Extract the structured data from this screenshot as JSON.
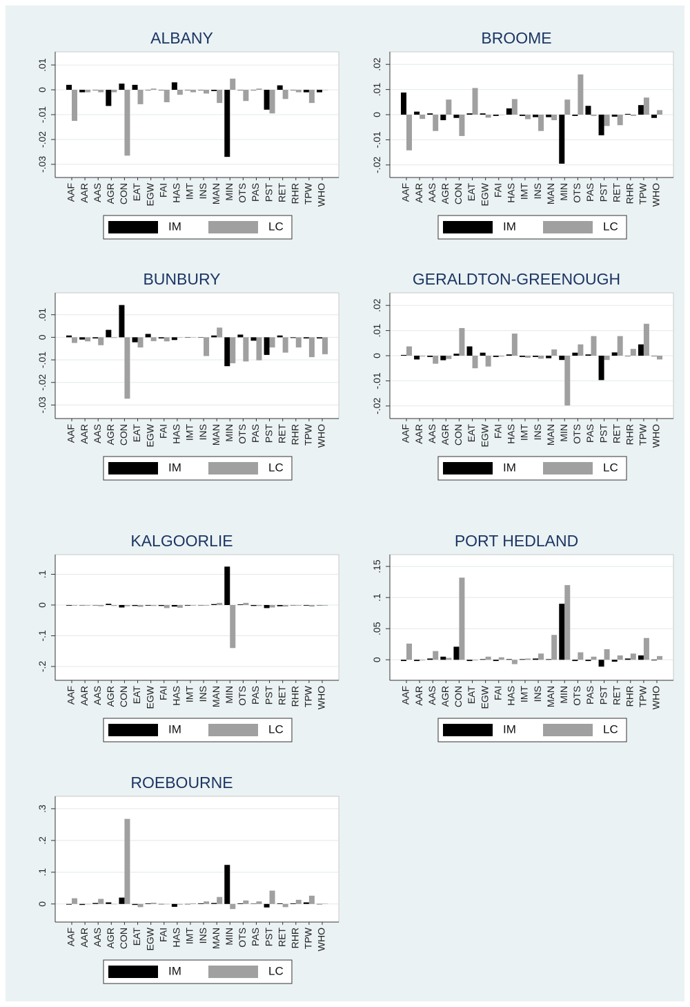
{
  "chart_data": [
    {
      "type": "bar",
      "title": "ALBANY",
      "categories": [
        "AAF",
        "AAR",
        "AAS",
        "AGR",
        "CON",
        "EAT",
        "EGW",
        "FAI",
        "HAS",
        "IMT",
        "INS",
        "MAN",
        "MIN",
        "OTS",
        "PAS",
        "PST",
        "RET",
        "RHR",
        "TPW",
        "WHO"
      ],
      "series": [
        {
          "name": "IM",
          "color": "#000000",
          "values": [
            0.002,
            -0.001,
            0,
            -0.0065,
            0.0025,
            0.002,
            0,
            0,
            0.003,
            0,
            0,
            -0.0005,
            -0.027,
            0,
            0,
            -0.008,
            0.0018,
            0,
            -0.001,
            -0.001
          ]
        },
        {
          "name": "LC",
          "color": "#a0a0a0",
          "values": [
            -0.0125,
            -0.001,
            -0.001,
            -0.001,
            -0.0265,
            -0.0058,
            0.0005,
            -0.005,
            -0.002,
            -0.001,
            -0.0015,
            -0.0053,
            0.0045,
            -0.0045,
            0.0005,
            -0.0095,
            -0.0037,
            -0.001,
            -0.0053,
            0
          ]
        }
      ],
      "ylim": [
        -0.0353,
        0.0153
      ],
      "yticks": [
        {
          "value": -0.03,
          "label": "-.03"
        },
        {
          "value": -0.02,
          "label": "-.02"
        },
        {
          "value": -0.01,
          "label": "-.01"
        },
        0,
        {
          "value": 0.01,
          "label": ".01"
        }
      ],
      "grid": true
    },
    {
      "type": "bar",
      "title": "BROOME",
      "categories": [
        "AAF",
        "AAR",
        "AAS",
        "AGR",
        "CON",
        "EAT",
        "EGW",
        "FAI",
        "HAS",
        "IMT",
        "INS",
        "MAN",
        "MIN",
        "OTS",
        "PAS",
        "PST",
        "RET",
        "RHR",
        "TPW",
        "WHO"
      ],
      "series": [
        {
          "name": "IM",
          "color": "#000000",
          "values": [
            0.0088,
            0.0012,
            0.0005,
            -0.0022,
            -0.0013,
            0.0005,
            0.0005,
            -0.0005,
            0.0025,
            -0.0005,
            -0.001,
            -0.001,
            -0.0195,
            -0.0005,
            0.0035,
            -0.0082,
            -0.0008,
            0.0003,
            0.0038,
            -0.0013
          ]
        },
        {
          "name": "LC",
          "color": "#a0a0a0",
          "values": [
            -0.0142,
            -0.0017,
            -0.0065,
            0.006,
            -0.0085,
            0.0106,
            -0.0012,
            0,
            0.0062,
            -0.0018,
            -0.0065,
            -0.0022,
            0.006,
            0.016,
            -0.0005,
            -0.0045,
            -0.0042,
            -0.0005,
            0.0068,
            0.0018
          ]
        }
      ],
      "ylim": [
        -0.025,
        0.025
      ],
      "yticks": [
        {
          "value": -0.02,
          "label": "-.02"
        },
        {
          "value": -0.01,
          "label": "-.01"
        },
        0,
        {
          "value": 0.01,
          "label": ".01"
        },
        {
          "value": 0.02,
          "label": ".02"
        }
      ],
      "grid": true
    },
    {
      "type": "bar",
      "title": "BUNBURY",
      "categories": [
        "AAF",
        "AAR",
        "AAS",
        "AGR",
        "CON",
        "EAT",
        "EGW",
        "FAI",
        "HAS",
        "IMT",
        "INS",
        "MAN",
        "MIN",
        "OTS",
        "PAS",
        "PST",
        "RET",
        "RHR",
        "TPW",
        "WHO"
      ],
      "series": [
        {
          "name": "IM",
          "color": "#000000",
          "values": [
            0.0008,
            -0.001,
            -0.0005,
            0.0033,
            0.0143,
            -0.0022,
            0.0015,
            -0.0005,
            -0.0012,
            0,
            0,
            0.0008,
            -0.0128,
            0.0012,
            -0.0015,
            -0.0078,
            0.0008,
            -0.0003,
            -0.0005,
            -0.0005
          ]
        },
        {
          "name": "LC",
          "color": "#a0a0a0",
          "values": [
            -0.0025,
            -0.0018,
            -0.0035,
            -0.0003,
            -0.0272,
            -0.0045,
            -0.0017,
            -0.0018,
            0,
            0,
            -0.0083,
            0.0043,
            -0.0115,
            -0.0107,
            -0.0102,
            -0.0045,
            -0.0068,
            -0.0045,
            -0.0088,
            -0.0075
          ]
        }
      ],
      "ylim": [
        -0.036,
        0.0197
      ],
      "yticks": [
        {
          "value": -0.03,
          "label": "-.03"
        },
        {
          "value": -0.02,
          "label": "-.02"
        },
        {
          "value": -0.01,
          "label": "-.01"
        },
        0,
        {
          "value": 0.01,
          "label": ".01"
        }
      ],
      "grid": true
    },
    {
      "type": "bar",
      "title": "GERALDTON-GREENOUGH",
      "categories": [
        "AAF",
        "AAR",
        "AAS",
        "AGR",
        "CON",
        "EAT",
        "EGW",
        "FAI",
        "HAS",
        "IMT",
        "INS",
        "MAN",
        "MIN",
        "OTS",
        "PAS",
        "PST",
        "RET",
        "RHR",
        "TPW",
        "WHO"
      ],
      "series": [
        {
          "name": "IM",
          "color": "#000000",
          "values": [
            0.0003,
            -0.0015,
            -0.0005,
            -0.0018,
            0.0008,
            0.0037,
            0.0012,
            -0.0005,
            0.0005,
            -0.0005,
            -0.0005,
            -0.001,
            -0.0017,
            0.0012,
            0.0005,
            -0.0097,
            0.0013,
            0,
            0.0045,
            0
          ]
        },
        {
          "name": "LC",
          "color": "#a0a0a0",
          "values": [
            0.0037,
            -0.0003,
            -0.0032,
            -0.0013,
            0.011,
            -0.005,
            -0.0043,
            -0.0003,
            0.0088,
            -0.0008,
            -0.0012,
            0.0025,
            -0.0198,
            0.0045,
            0.0078,
            -0.0017,
            0.0078,
            0.0027,
            0.0127,
            -0.0015
          ]
        }
      ],
      "ylim": [
        -0.025,
        0.025
      ],
      "yticks": [
        {
          "value": -0.02,
          "label": "-.02"
        },
        {
          "value": -0.01,
          "label": "-.01"
        },
        0,
        {
          "value": 0.01,
          "label": ".01"
        },
        {
          "value": 0.02,
          "label": ".02"
        }
      ],
      "grid": true
    },
    {
      "type": "bar",
      "title": "KALGOORLIE",
      "categories": [
        "AAF",
        "AAR",
        "AAS",
        "AGR",
        "CON",
        "EAT",
        "EGW",
        "FAI",
        "HAS",
        "IMT",
        "INS",
        "MAN",
        "MIN",
        "OTS",
        "PAS",
        "PST",
        "RET",
        "RHR",
        "TPW",
        "WHO"
      ],
      "series": [
        {
          "name": "IM",
          "color": "#000000",
          "values": [
            -0.002,
            -0.001,
            -0.001,
            0.004,
            -0.008,
            -0.003,
            -0.002,
            -0.003,
            -0.005,
            -0.002,
            0,
            0.003,
            0.125,
            0.002,
            -0.003,
            -0.01,
            -0.004,
            -0.001,
            -0.002,
            -0.001
          ]
        },
        {
          "name": "LC",
          "color": "#a0a0a0",
          "values": [
            -0.002,
            -0.002,
            -0.004,
            -0.003,
            -0.004,
            -0.006,
            -0.003,
            -0.01,
            -0.009,
            -0.002,
            -0.002,
            0.007,
            -0.14,
            0.007,
            -0.003,
            -0.008,
            -0.005,
            -0.002,
            -0.005,
            -0.002
          ]
        }
      ],
      "ylim": [
        -0.245,
        0.164
      ],
      "yticks": [
        {
          "value": -0.2,
          "label": "-.2"
        },
        {
          "value": -0.1,
          "label": "-.1"
        },
        0,
        {
          "value": 0.1,
          "label": ".1"
        }
      ],
      "grid": true
    },
    {
      "type": "bar",
      "title": "PORT HEDLAND",
      "categories": [
        "AAF",
        "AAR",
        "AAS",
        "AGR",
        "CON",
        "EAT",
        "EGW",
        "FAI",
        "HAS",
        "IMT",
        "INS",
        "MAN",
        "MIN",
        "OTS",
        "PAS",
        "PST",
        "RET",
        "RHR",
        "TPW",
        "WHO"
      ],
      "series": [
        {
          "name": "IM",
          "color": "#000000",
          "values": [
            -0.002,
            -0.002,
            0.002,
            0.005,
            0.021,
            -0.002,
            0.001,
            -0.002,
            0.001,
            0.001,
            0.002,
            0.001,
            0.09,
            -0.002,
            -0.002,
            -0.011,
            -0.003,
            0.002,
            0.007,
            -0.001
          ]
        },
        {
          "name": "LC",
          "color": "#a0a0a0",
          "values": [
            0.026,
            -0.001,
            0.014,
            0.003,
            0.132,
            -0.001,
            0.005,
            0.004,
            -0.007,
            0.002,
            0.01,
            0.04,
            0.12,
            0.012,
            0.005,
            0.017,
            0.007,
            0.01,
            0.035,
            0.006
          ]
        }
      ],
      "ylim": [
        -0.033,
        0.169
      ],
      "yticks": [
        0,
        {
          "value": 0.05,
          "label": ".05"
        },
        {
          "value": 0.1,
          "label": ".1"
        },
        {
          "value": 0.15,
          "label": ".15"
        }
      ],
      "grid": true
    },
    {
      "type": "bar",
      "title": "ROEBOURNE",
      "categories": [
        "AAF",
        "AAR",
        "AAS",
        "AGR",
        "CON",
        "EAT",
        "EGW",
        "FAI",
        "HAS",
        "IMT",
        "INS",
        "MAN",
        "MIN",
        "OTS",
        "PAS",
        "PST",
        "RET",
        "RHR",
        "TPW",
        "WHO"
      ],
      "series": [
        {
          "name": "IM",
          "color": "#000000",
          "values": [
            -0.002,
            -0.003,
            0.003,
            0.005,
            0.02,
            -0.003,
            0.002,
            -0.001,
            -0.009,
            -0.001,
            0.002,
            0.003,
            0.123,
            0.002,
            0.001,
            -0.011,
            0.002,
            0.002,
            0.005,
            -0.001
          ]
        },
        {
          "name": "LC",
          "color": "#a0a0a0",
          "values": [
            0.018,
            -0.001,
            0.016,
            -0.001,
            0.268,
            -0.01,
            0.004,
            -0.001,
            -0.002,
            0.002,
            0.008,
            0.022,
            -0.016,
            0.011,
            0.008,
            0.042,
            -0.01,
            0.013,
            0.026,
            0.001
          ]
        }
      ],
      "ylim": [
        -0.057,
        0.339
      ],
      "yticks": [
        0,
        {
          "value": 0.1,
          "label": ".1"
        },
        {
          "value": 0.2,
          "label": ".2"
        },
        {
          "value": 0.3,
          "label": ".3"
        }
      ],
      "grid": true
    }
  ]
}
